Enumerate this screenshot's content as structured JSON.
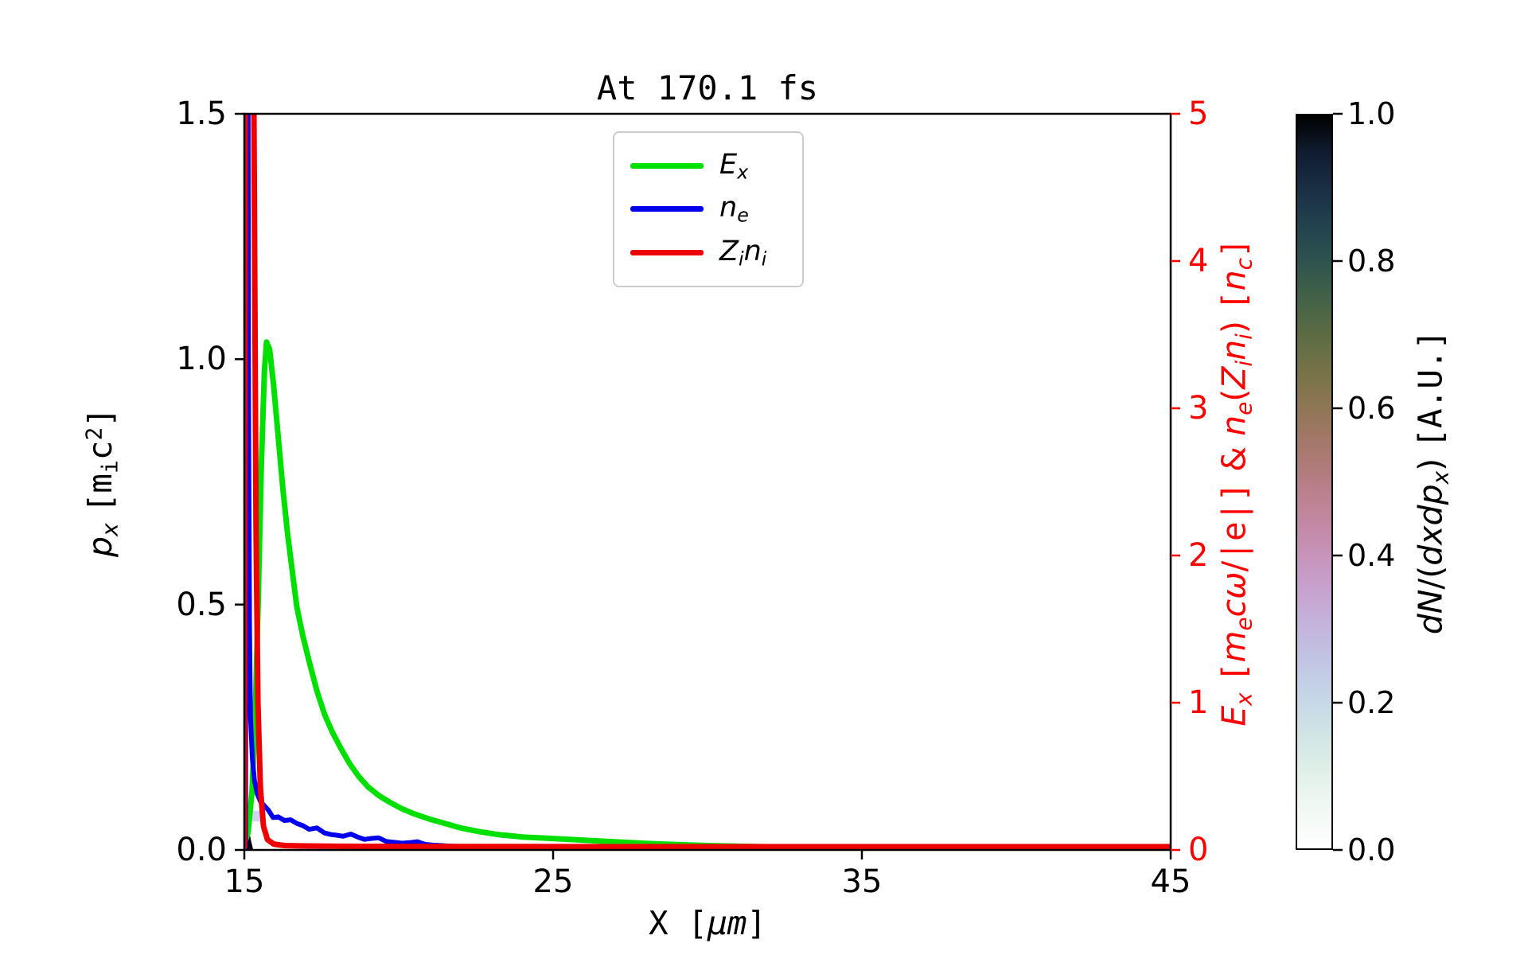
{
  "chart_data": {
    "type": "line",
    "title": "At 170.1 fs",
    "background": "#ffffff",
    "grid": false,
    "x_axis": {
      "label_rich": [
        [
          "X [",
          "m"
        ],
        [
          "μ",
          "i"
        ],
        [
          "m",
          "i"
        ],
        [
          "]",
          "m"
        ]
      ],
      "range": [
        15,
        45
      ],
      "ticks": [
        15,
        25,
        35,
        45
      ],
      "tick_labels": [
        "15",
        "25",
        "35",
        "45"
      ],
      "color": "#000000"
    },
    "left_y_axis": {
      "label_rich": [
        [
          "p",
          "i"
        ],
        [
          "x",
          "isub"
        ],
        [
          " ",
          "n"
        ],
        [
          "[m",
          "m"
        ],
        [
          "i",
          "msub"
        ],
        [
          "c",
          "m"
        ],
        [
          "2",
          "msup"
        ],
        [
          "]",
          "m"
        ]
      ],
      "range": [
        0,
        1.5
      ],
      "ticks": [
        0.0,
        0.5,
        1.0,
        1.5
      ],
      "tick_labels": [
        "0.0",
        "0.5",
        "1.0",
        "1.5"
      ],
      "color": "#000000"
    },
    "right_y_axis": {
      "label_rich": [
        [
          "E",
          "i"
        ],
        [
          "x",
          "isub"
        ],
        [
          " ",
          "n"
        ],
        [
          "[",
          "m"
        ],
        [
          "m",
          "i"
        ],
        [
          "e",
          "isub"
        ],
        [
          "c",
          "i"
        ],
        [
          "ω",
          "i"
        ],
        [
          "/",
          "n"
        ],
        [
          "|e|",
          "m"
        ],
        [
          "]",
          "m"
        ],
        [
          " & ",
          "n"
        ],
        [
          "n",
          "i"
        ],
        [
          "e",
          "isub"
        ],
        [
          "(",
          "n"
        ],
        [
          "Z",
          "i"
        ],
        [
          "i",
          "isub"
        ],
        [
          "n",
          "i"
        ],
        [
          "i",
          "isub"
        ],
        [
          ")",
          "n"
        ],
        [
          " ",
          "n"
        ],
        [
          "[",
          "m"
        ],
        [
          "n",
          "i"
        ],
        [
          "c",
          "isub"
        ],
        [
          "]",
          "m"
        ]
      ],
      "range": [
        0,
        5
      ],
      "ticks": [
        0,
        1,
        2,
        3,
        4,
        5
      ],
      "tick_labels": [
        "0",
        "1",
        "2",
        "3",
        "4",
        "5"
      ],
      "color": "#ff0000"
    },
    "legend": {
      "position": "upper center",
      "entries": [
        {
          "name": "Ex",
          "label_rich": [
            [
              "E",
              "i"
            ],
            [
              "x",
              "isub"
            ]
          ],
          "color": "#00e000"
        },
        {
          "name": "ne",
          "label_rich": [
            [
              "n",
              "i"
            ],
            [
              "e",
              "isub"
            ]
          ],
          "color": "#0000ee"
        },
        {
          "name": "Zini",
          "label_rich": [
            [
              "Z",
              "i"
            ],
            [
              "i",
              "isub"
            ],
            [
              "n",
              "i"
            ],
            [
              "i",
              "isub"
            ]
          ],
          "color": "#ee0000"
        }
      ]
    },
    "series": [
      {
        "name": "Ex",
        "axis": "right",
        "color": "#00e000",
        "linewidth": 7,
        "points": [
          [
            15.0,
            0.04
          ],
          [
            15.12,
            0.12
          ],
          [
            15.25,
            0.4
          ],
          [
            15.35,
            0.9
          ],
          [
            15.45,
            1.7
          ],
          [
            15.55,
            2.6
          ],
          [
            15.65,
            3.25
          ],
          [
            15.72,
            3.45
          ],
          [
            15.82,
            3.4
          ],
          [
            15.95,
            3.15
          ],
          [
            16.1,
            2.8
          ],
          [
            16.25,
            2.45
          ],
          [
            16.4,
            2.15
          ],
          [
            16.55,
            1.9
          ],
          [
            16.7,
            1.65
          ],
          [
            16.9,
            1.45
          ],
          [
            17.1,
            1.28
          ],
          [
            17.35,
            1.08
          ],
          [
            17.6,
            0.92
          ],
          [
            17.85,
            0.8
          ],
          [
            18.1,
            0.7
          ],
          [
            18.4,
            0.59
          ],
          [
            18.7,
            0.5
          ],
          [
            19.0,
            0.43
          ],
          [
            19.35,
            0.37
          ],
          [
            19.7,
            0.325
          ],
          [
            20.1,
            0.28
          ],
          [
            20.5,
            0.245
          ],
          [
            21.0,
            0.21
          ],
          [
            21.5,
            0.18
          ],
          [
            22.0,
            0.15
          ],
          [
            22.6,
            0.125
          ],
          [
            23.2,
            0.105
          ],
          [
            24.0,
            0.088
          ],
          [
            25.0,
            0.078
          ],
          [
            26.0,
            0.066
          ],
          [
            27.0,
            0.055
          ],
          [
            28.0,
            0.045
          ],
          [
            29.0,
            0.037
          ],
          [
            30.0,
            0.03
          ],
          [
            31.5,
            0.023
          ],
          [
            33.0,
            0.017
          ],
          [
            35.0,
            0.012
          ],
          [
            37.0,
            0.009
          ],
          [
            39.0,
            0.007
          ],
          [
            41.0,
            0.006
          ],
          [
            43.0,
            0.005
          ],
          [
            45.0,
            0.004
          ]
        ]
      },
      {
        "name": "ne",
        "axis": "right",
        "color": "#0000ee",
        "linewidth": 6,
        "points": [
          [
            15.0,
            0.0
          ],
          [
            15.04,
            0.02
          ],
          [
            15.06,
            5.3
          ],
          [
            15.12,
            5.3
          ],
          [
            15.14,
            3.0
          ],
          [
            15.17,
            1.5
          ],
          [
            15.2,
            0.9
          ],
          [
            15.26,
            0.62
          ],
          [
            15.33,
            0.47
          ],
          [
            15.42,
            0.38
          ],
          [
            15.52,
            0.33
          ],
          [
            15.65,
            0.3
          ],
          [
            15.78,
            0.27
          ],
          [
            15.93,
            0.22
          ],
          [
            16.1,
            0.225
          ],
          [
            16.3,
            0.2
          ],
          [
            16.5,
            0.205
          ],
          [
            16.7,
            0.18
          ],
          [
            16.9,
            0.165
          ],
          [
            17.1,
            0.14
          ],
          [
            17.35,
            0.15
          ],
          [
            17.6,
            0.115
          ],
          [
            17.8,
            0.105
          ],
          [
            18.0,
            0.1
          ],
          [
            18.2,
            0.093
          ],
          [
            18.45,
            0.108
          ],
          [
            18.7,
            0.085
          ],
          [
            18.9,
            0.072
          ],
          [
            19.1,
            0.078
          ],
          [
            19.35,
            0.082
          ],
          [
            19.6,
            0.058
          ],
          [
            19.85,
            0.052
          ],
          [
            20.1,
            0.046
          ],
          [
            20.35,
            0.05
          ],
          [
            20.6,
            0.056
          ],
          [
            20.85,
            0.038
          ],
          [
            21.1,
            0.033
          ],
          [
            21.4,
            0.03
          ],
          [
            21.7,
            0.026
          ],
          [
            22.0,
            0.023
          ],
          [
            22.4,
            0.02
          ],
          [
            22.8,
            0.017
          ],
          [
            23.2,
            0.014
          ],
          [
            23.7,
            0.013
          ],
          [
            24.2,
            0.012
          ],
          [
            24.8,
            0.011
          ],
          [
            25.5,
            0.01
          ],
          [
            26.5,
            0.009
          ],
          [
            28.0,
            0.008
          ],
          [
            30.0,
            0.007
          ],
          [
            32.5,
            0.006
          ],
          [
            35.0,
            0.005
          ],
          [
            38.0,
            0.005
          ],
          [
            41.0,
            0.004
          ],
          [
            45.0,
            0.004
          ]
        ]
      },
      {
        "name": "Zini",
        "axis": "right",
        "color": "#ee0000",
        "linewidth": 7,
        "points": [
          [
            15.0,
            0.02
          ],
          [
            15.03,
            5.5
          ],
          [
            15.3,
            5.5
          ],
          [
            15.38,
            2.2
          ],
          [
            15.44,
            1.0
          ],
          [
            15.52,
            0.42
          ],
          [
            15.62,
            0.16
          ],
          [
            15.75,
            0.07
          ],
          [
            15.95,
            0.04
          ],
          [
            16.3,
            0.03
          ],
          [
            17.0,
            0.027
          ],
          [
            18.0,
            0.025
          ],
          [
            20.0,
            0.024
          ],
          [
            23.0,
            0.023
          ],
          [
            26.0,
            0.022
          ],
          [
            30.0,
            0.022
          ],
          [
            35.0,
            0.022
          ],
          [
            40.0,
            0.022
          ],
          [
            45.0,
            0.022
          ]
        ]
      }
    ],
    "phase_space": {
      "description": "dN/(dxdpx) distribution near target front",
      "black_wedge_xy": [
        [
          15.0,
          0.0
        ],
        [
          15.29,
          0.0
        ],
        [
          15.22,
          0.018
        ],
        [
          15.15,
          0.04
        ],
        [
          15.08,
          0.06
        ],
        [
          15.0,
          0.068
        ]
      ],
      "halo_rect": {
        "x0": 15.0,
        "x1": 15.64,
        "p0": 0.058,
        "p1": 0.08,
        "color": "#c4c9ea",
        "opacity": 0.8
      }
    },
    "colorbar": {
      "label_rich": [
        [
          "d",
          "i"
        ],
        [
          "N",
          "i"
        ],
        [
          "/(",
          "n"
        ],
        [
          "d",
          "i"
        ],
        [
          "x",
          "i"
        ],
        [
          "d",
          "i"
        ],
        [
          "p",
          "i"
        ],
        [
          "x",
          "isub"
        ],
        [
          ")",
          "n"
        ],
        [
          " ",
          "n"
        ],
        [
          "[A.U.]",
          "m"
        ]
      ],
      "range": [
        0,
        1
      ],
      "ticks": [
        1.0,
        0.8,
        0.6,
        0.4,
        0.2,
        0.0
      ],
      "tick_labels": [
        "1.0",
        "0.8",
        "0.6",
        "0.4",
        "0.2",
        "0.0"
      ],
      "gradient_stops": [
        [
          0.0,
          "#ffffff"
        ],
        [
          0.05,
          "#f2f9f4"
        ],
        [
          0.1,
          "#e2f1e9"
        ],
        [
          0.15,
          "#d2e6e5"
        ],
        [
          0.2,
          "#c6d8e6"
        ],
        [
          0.25,
          "#c2c7e4"
        ],
        [
          0.3,
          "#c4b5dd"
        ],
        [
          0.35,
          "#c7a3cf"
        ],
        [
          0.4,
          "#c793ba"
        ],
        [
          0.45,
          "#c287a0"
        ],
        [
          0.5,
          "#b77e85"
        ],
        [
          0.55,
          "#a6786c"
        ],
        [
          0.6,
          "#907655"
        ],
        [
          0.65,
          "#777347"
        ],
        [
          0.7,
          "#5c6c43"
        ],
        [
          0.75,
          "#436247"
        ],
        [
          0.8,
          "#2e544e"
        ],
        [
          0.85,
          "#22424e"
        ],
        [
          0.9,
          "#1a2f44"
        ],
        [
          0.95,
          "#101c30"
        ],
        [
          1.0,
          "#000000"
        ]
      ]
    }
  }
}
